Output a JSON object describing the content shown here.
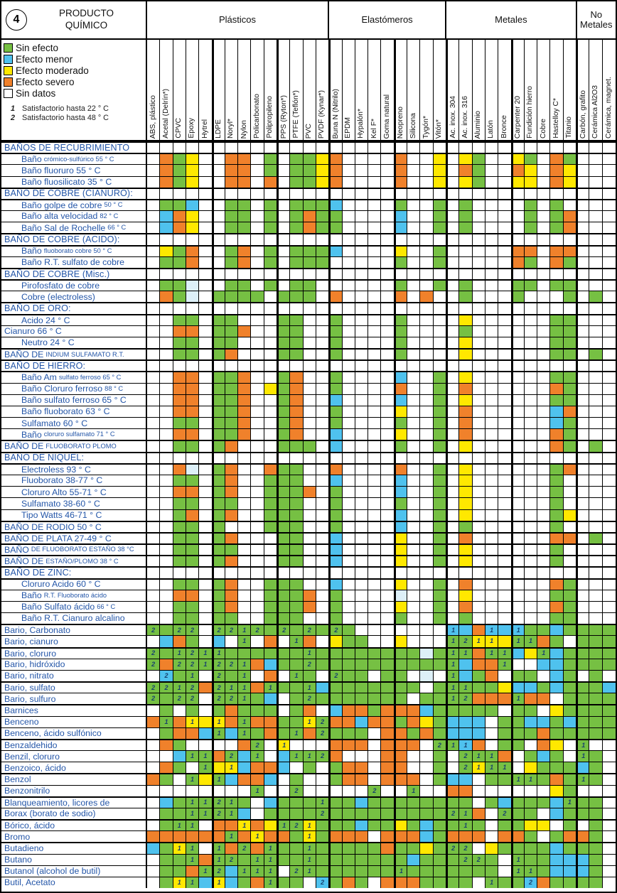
{
  "badge": "4",
  "title": "PRODUCTO\nQUÍMICO",
  "legend": {
    "items": [
      {
        "key": "g",
        "label": "Sin efecto",
        "color": "#76C043"
      },
      {
        "key": "b",
        "label": "Efecto menor",
        "color": "#4FC2EE"
      },
      {
        "key": "y",
        "label": "Efecto moderado",
        "color": "#FFE800"
      },
      {
        "key": "o",
        "label": "Efecto severo",
        "color": "#F0812B"
      },
      {
        "key": "w",
        "label": "Sin datos",
        "color": "#FFFFFF"
      }
    ],
    "notes": [
      {
        "n": "1",
        "text": "Satisfactorio hasta 22 ° C"
      },
      {
        "n": "2",
        "text": "Satisfactorio hasta 48 ° C"
      }
    ]
  },
  "colors": {
    "g": "#76C043",
    "b": "#4FC2EE",
    "y": "#FFE800",
    "o": "#F0812B",
    "w": "#FFFFFF",
    "p": "#DDF0F8"
  },
  "groups": [
    {
      "label": "Plásticos",
      "cols": 14
    },
    {
      "label": "Elastómeros",
      "cols": 9
    },
    {
      "label": "Metales",
      "cols": 10
    },
    {
      "label": "No Metales",
      "cols": 3
    }
  ],
  "subgroup_starts": [
    5,
    10,
    14,
    19,
    23,
    28,
    33
  ],
  "columns": [
    "ABS, plástico",
    "Acetal (Delrín*)",
    "CPVC",
    "Epoxy",
    "Hytrel",
    "LDPE",
    "Noryl*",
    "Nylon",
    "Policarbonato",
    "Polipropileno",
    "PPS (Ryton*)",
    "PTFE (Teflón*)",
    "PVC",
    "PVDF (Kynar*)",
    "Buna N (Nitrilo)",
    "EPDM",
    "Hypalón*",
    "Kel F*",
    "Goma natural",
    "Neopreno",
    "Silicona",
    "Tygón*",
    "Vitón*",
    "Ac. inox. 304",
    "Ac. inox. 316",
    "Aluminio",
    "Latón",
    "Bronce",
    "Carpenter 20",
    "Fundición hierro",
    "Cobre",
    "Hastelloy C*",
    "Titanio",
    "Carbón, grafito",
    "Cerámica Al2O3",
    "Cerámica, magnet."
  ],
  "rows": [
    {
      "t": "s",
      "label": "BAÑOS DE RECUBRIMIENTO"
    },
    {
      "t": "d",
      "indent": true,
      "label": "Baño",
      "small": "crómico-sulfúrico 55 ° C",
      "cells": "w o g y w w o o w g w g g y o w w w w o w w y w y g w w y g w o g w w w"
    },
    {
      "t": "d",
      "indent": true,
      "label": "Baño fluoruro 55 ° C",
      "cells": "w o g y w w o o w g w g g y o w w w w o w w y w o g w w o y w o y w w w"
    },
    {
      "t": "d",
      "indent": true,
      "label": "Baño fluosilicato 35 ° C",
      "cells": "w o g y w w o o w o w g g y o w w w w o w w y w y g w w y y w o y w w w"
    },
    {
      "t": "s",
      "label": "BAÑO DE COBRE (CIANURO):"
    },
    {
      "t": "d",
      "indent": true,
      "label": "Baño golpe de cobre",
      "small": "50 ° C",
      "cells": "w g g b w w g g w g w g g g b w w w w g w w g w g w w w w g w g w w w w"
    },
    {
      "t": "d",
      "indent": true,
      "label": "Baño alta velocidad",
      "small": "82 ° C",
      "cells": "w b o y w w g g w g w g o g g w w w w b w w g w g w w w w g w g o w w w"
    },
    {
      "t": "d",
      "indent": true,
      "label": "Baño Sal de Rochelle",
      "small": "66 ° C",
      "cells": "w b o y w w g g w g w g o g g w w w w b w w g w g w w w w g w g o w w w"
    },
    {
      "t": "s",
      "label": "BAÑO DE COBRE (ACIDO):"
    },
    {
      "t": "d",
      "indent": true,
      "label": "Baño",
      "small": "fluoborato cobre 50 ° C",
      "cells": "w y g o w w g o w g w g g g b w w w w y w w g w w w w w o o w o o w w w"
    },
    {
      "t": "d",
      "indent": true,
      "label": "Baño R.T. sulfato de cobre",
      "cells": "w g g o w w g o w g w g g g w w w w w g w w g w w w w w o g w o g w w w"
    },
    {
      "t": "s",
      "label": "BAÑO DE COBRE (Misc.)"
    },
    {
      "t": "d",
      "indent": true,
      "label": "Pirofosfato de cobre",
      "cells": "w g g p w w g g w g w g g w w w w w w g w w g w g w w w g g w g g w w w"
    },
    {
      "t": "d",
      "indent": true,
      "label": "Cobre (electroless)",
      "cells": "w o g p w g g g g w g g g w o w w w w o w o w w g w w w g w w w g w g w"
    },
    {
      "t": "s",
      "label": "BAÑO DE ORO:"
    },
    {
      "t": "d",
      "indent": true,
      "label": "Acido 24 ° C",
      "cells": "w w g g w g g w w w g g w w g w w w w g w w w w y w w w w w w g g w w w"
    },
    {
      "t": "d",
      "label": "Cianuro 66 ° C",
      "cells": "w w o o w g g o w w g g w w g w w w w g w w w w g w w w w w w g g w w w"
    },
    {
      "t": "d",
      "indent": true,
      "label": "Neutro 24 ° C",
      "cells": "w w g g w g g w w w g g w w g w w w w g w w w w y w w w w w w g g w w w"
    },
    {
      "t": "d",
      "sep": true,
      "label": "BAÑO DE",
      "small": "INDIUM SULFAMATO R.T.",
      "cells": "w w g g w g o w w w g g w w g w w w w g w w w w y w w w w w w g g w g w"
    },
    {
      "t": "s",
      "label": "BAÑO DE HIERRO:"
    },
    {
      "t": "d",
      "indent": true,
      "label": "Baño Am",
      "small": "sulfato ferroso 65 ° C",
      "cells": "w w o o w g g o w w g o w w g w w w w b w w g w y w w w w w w g g w w w"
    },
    {
      "t": "d",
      "indent": true,
      "label": "Baño Cloruro ferroso",
      "small": "88 ° C",
      "cells": "w w o o w g g o w y g o w w g w w w w o w w g w o w w w w w w o g w w w"
    },
    {
      "t": "d",
      "indent": true,
      "label": "Baño sulfato ferroso 65 ° C",
      "cells": "w w o o w g g o w w g o w w b w w w w b w w g w y w w w w w w g g w w w"
    },
    {
      "t": "d",
      "indent": true,
      "label": "Baño fluoborato 63 ° C",
      "cells": "w w o o w g g o w w g o w w g w w w w y w w g w o w w w w w w b o w w w"
    },
    {
      "t": "d",
      "indent": true,
      "label": "Sulfamato 60 ° C",
      "cells": "w w g g w g g o w w g o w w g w w w w g w w g w o w w w w w w b g w w w"
    },
    {
      "t": "d",
      "indent": true,
      "label": "Baño",
      "small": "cloruro sulfamato  71 ° C",
      "cells": "w w o o w g g o w w g o w w b w w w w y w w g w o w w w w w w o g w w w"
    },
    {
      "t": "d",
      "sep": true,
      "label": "BAÑO DE",
      "small": "FLUOBORATO PLOMO",
      "cells": "w w g g w g o w w w g g g w b w w w w g w w g w y w w w w w w o g w g w"
    },
    {
      "t": "s",
      "label": "BAÑO DE NIQUEL:"
    },
    {
      "t": "d",
      "indent": true,
      "label": "Electroless 93 ° C",
      "cells": "w w o p w g o w w o g g w w o w w w w o w w g w y w w w w w w g o w w w"
    },
    {
      "t": "d",
      "indent": true,
      "label": "Fluoborato  38-77 ° C",
      "cells": "w w g g w g o w w g g g w w b w w w w b w w g w y w w w w w w g w w w w"
    },
    {
      "t": "d",
      "indent": true,
      "label": "Cloruro Alto 55-71 ° C",
      "cells": "w w o o w g o w w g g g o w g w w w w b w w g w y w w w w w w g w w w w"
    },
    {
      "t": "d",
      "indent": true,
      "label": "Sulfamato 38-60 ° C",
      "cells": "w w g g w g g w w g g g w w g w w w w g w w g w y w w w w w w g w w w w"
    },
    {
      "t": "d",
      "indent": true,
      "label": "Tipo Watts 46-71 ° C",
      "cells": "w w g o w g o w w g g g w w g w w w w b w w g w y w w w w w w g y w w w"
    },
    {
      "t": "d",
      "sep": true,
      "label": "BAÑO DE RODIO 50 ° C",
      "cells": "w w g g w g w w w g g g w w g w w w w b w w g w g w w w w w w g w w w w"
    },
    {
      "t": "d",
      "sep": true,
      "label": "BAÑO DE PLATA  27-49 ° C",
      "cells": "w w g g w g o w w w g g w w b w w w w y w w g w o w w w w w w o o w g w"
    },
    {
      "t": "d",
      "sep": true,
      "label": "BAÑO",
      "small": "DE FLUOBORATO ESTAÑO 38 °C",
      "cells": "w w g g w g g w w w g g w w b w w w w y w w g w y w w w w w w g w w w w"
    },
    {
      "t": "d",
      "sep": true,
      "label": "BAÑO DE",
      "small": "ESTAÑO/PLOMO 38 ° C",
      "cells": "w w g g w g o w w w g g w w b w w w w y w w g w y w w w w w w g w w w w"
    },
    {
      "t": "s",
      "label": "BAÑO DE ZINC:"
    },
    {
      "t": "d",
      "indent": true,
      "label": "Cloruro Acido 60 ° C",
      "cells": "w w g g w g o w w g g g w w b w w w w y w w g w o w w w w w w o g w w w"
    },
    {
      "t": "d",
      "indent": true,
      "label": "Baño",
      "small": "R.T. Fluoborato ácido",
      "cells": "w w o o w g o w w g g g o w g w w w w p w w g w y w w w w w w g g w w w"
    },
    {
      "t": "d",
      "indent": true,
      "label": "Baño Sulfato ácido",
      "small": "66 ° C",
      "cells": "w w g g w g o w w g g g o w g w w w w y w w g w o w w w w w w o g w w w"
    },
    {
      "t": "d",
      "indent": true,
      "label": "Baño R.T. Cianuro alcalino",
      "cells": "w w g g w g g w w g g g w w g w w w w g w w g w g w w w w w w g g w w w"
    },
    {
      "t": "d",
      "sep": true,
      "label": "Bario, Carbonato",
      "cells": "g2 g g2 g2 w g2 g2 g1 g2 g g2 g g2 g g2 g w w w w w w w b1 b o b1 b b1 g g b g g g g"
    },
    {
      "t": "d",
      "label": "Bario, cianuro",
      "cells": "w b o g w b w g1 w o w g1 o w y g g w w y w w w g1 g2 y1 y1 y g1 g1 o g w g g g"
    },
    {
      "t": "d",
      "sep": true,
      "label": "Bario, cloruro",
      "cells": "g2 g g1 g2 g1 g1 g g g g g g g1 g g g g g g g g p g g1 g1 o g1 g1 b y g1 b g g g g"
    },
    {
      "t": "d",
      "label": "Bario, hidróxido",
      "cells": "g2 o g2 g2 g1 g2 g2 g1 o b g g g2 g g g g g g g g g g g1 b o o g1 w w b b g g g g"
    },
    {
      "t": "d",
      "label": "Bario, nitrato",
      "cells": "w b2 g g1 w g2 g g1 w o w g1 g w g2 g g w g g w p w g1 b g o w g g w b g w g w"
    },
    {
      "t": "d",
      "sep": true,
      "label": "Bario, sulfato",
      "cells": "g2 g2 g1 g2 o g2 g1 g1 o g1 g g g1 b g g g g g g g w g g1 g1 g g y b b g b g g g b"
    },
    {
      "t": "d",
      "label": "Bario, sulfuro",
      "cells": "g2 g g2 g2 w g2 g2 g1 g b w g g2 g g g g g g g w g g g1 g2 o o o g1 o o w g g g g"
    },
    {
      "t": "d",
      "sep": true,
      "label": "Barnices",
      "cells": "w g w g w g o g g g w g o w b o o g o o o b g g g g g w g g w y g g g g"
    },
    {
      "t": "d",
      "label": "Benceno",
      "cells": "o g1 o y1 y y1 o g1 o o g g y1 g2 o o b o o g o y g b b b w g g b b g b g g g"
    },
    {
      "t": "d",
      "label": "Benceno, ácido sulfónico",
      "cells": "w g o o b g1 b g1 g o g g1 o g2 g g g w o o g o g b b b w g g g o g g g g g"
    },
    {
      "t": "d",
      "sep": true,
      "label": "Benzaldehido",
      "cells": "w o g w w w w o g2 w y1 w w w o o o w o o o w g2 g1 b1 o w g g w o y w g1 w w"
    },
    {
      "t": "d",
      "label": "Benzil, cloruro",
      "cells": "w w b g1 g1 o g2 b g1 w b g1 g1 g2 o w w w o o w w g w g2 g1 g1 o w g b g w g1 g w"
    },
    {
      "t": "d",
      "label": "Benzoico, ácido",
      "cells": "w o g w g1 y y1 b o o b w g w g o o w o o w w g w g2 y1 g1 g1 w y g g g b g w"
    },
    {
      "t": "d",
      "sep": true,
      "label": "Benzol",
      "cells": "o g w g1 y g1 b o o b w g w w g o o w o o o w g b b w g g g1 g1 g o g g1 g w"
    },
    {
      "t": "d",
      "label": "Benzonitrilo",
      "cells": "w w w w w w w w g1 w w g2 w w w w w g2 w w g1 w w o o w w w w w w y g w w w"
    },
    {
      "t": "d",
      "sep": true,
      "label": "Blanqueamiento, licores de",
      "cells": "w b g g1 g1 g2 g1 g w b g g g g1 g g b g g g g g g g g w g b g g g b g1 g g w"
    },
    {
      "t": "d",
      "label": "Borax (borato de sodio)",
      "cells": "w g g g1 g1 g2 g1 b w g g g g g2 g g g g g g g g g g2 g1 o w g2 g g w b g g g w"
    },
    {
      "t": "d",
      "sep": true,
      "label": "Bórico, ácido",
      "cells": "w g g1 g1 w o o y1 o y g1 g2 y1 g g g b g g y g b g g g1 g w g g y y w g w g w"
    },
    {
      "t": "d",
      "label": "Bromo",
      "cells": "o o o o o o g1 o y1 o o g y1 g o o o w o o o b g o o o w o o g w g o o g w"
    },
    {
      "t": "d",
      "sep": true,
      "label": "Butadieno",
      "cells": "b g y1 g1 w g1 o g2 o g1 g g g1 g g g g g o g g y g g2 g2 w y g g g g b g g g w"
    },
    {
      "t": "d",
      "label": "Butano",
      "cells": "w g g g1 o g1 g2 g g1 g1 g g g1 g g g g g g g b g g g g2 g2 g w g1 g g b b b g w"
    },
    {
      "t": "d",
      "label": "Butanol (alcohol de butil)",
      "cells": "w g g o g1 g2 b g1 g1 g1 w g2 g1 g g g g g g g1 g g g g g g g w g1 g1 g b b b g w"
    },
    {
      "t": "d",
      "label": "Butil, Acetato",
      "cells": "w g y1 g1 b y1 b g o g1 g g w b2 g o g w o o o g g g g w g1 g g b2 o g g g g w"
    }
  ]
}
